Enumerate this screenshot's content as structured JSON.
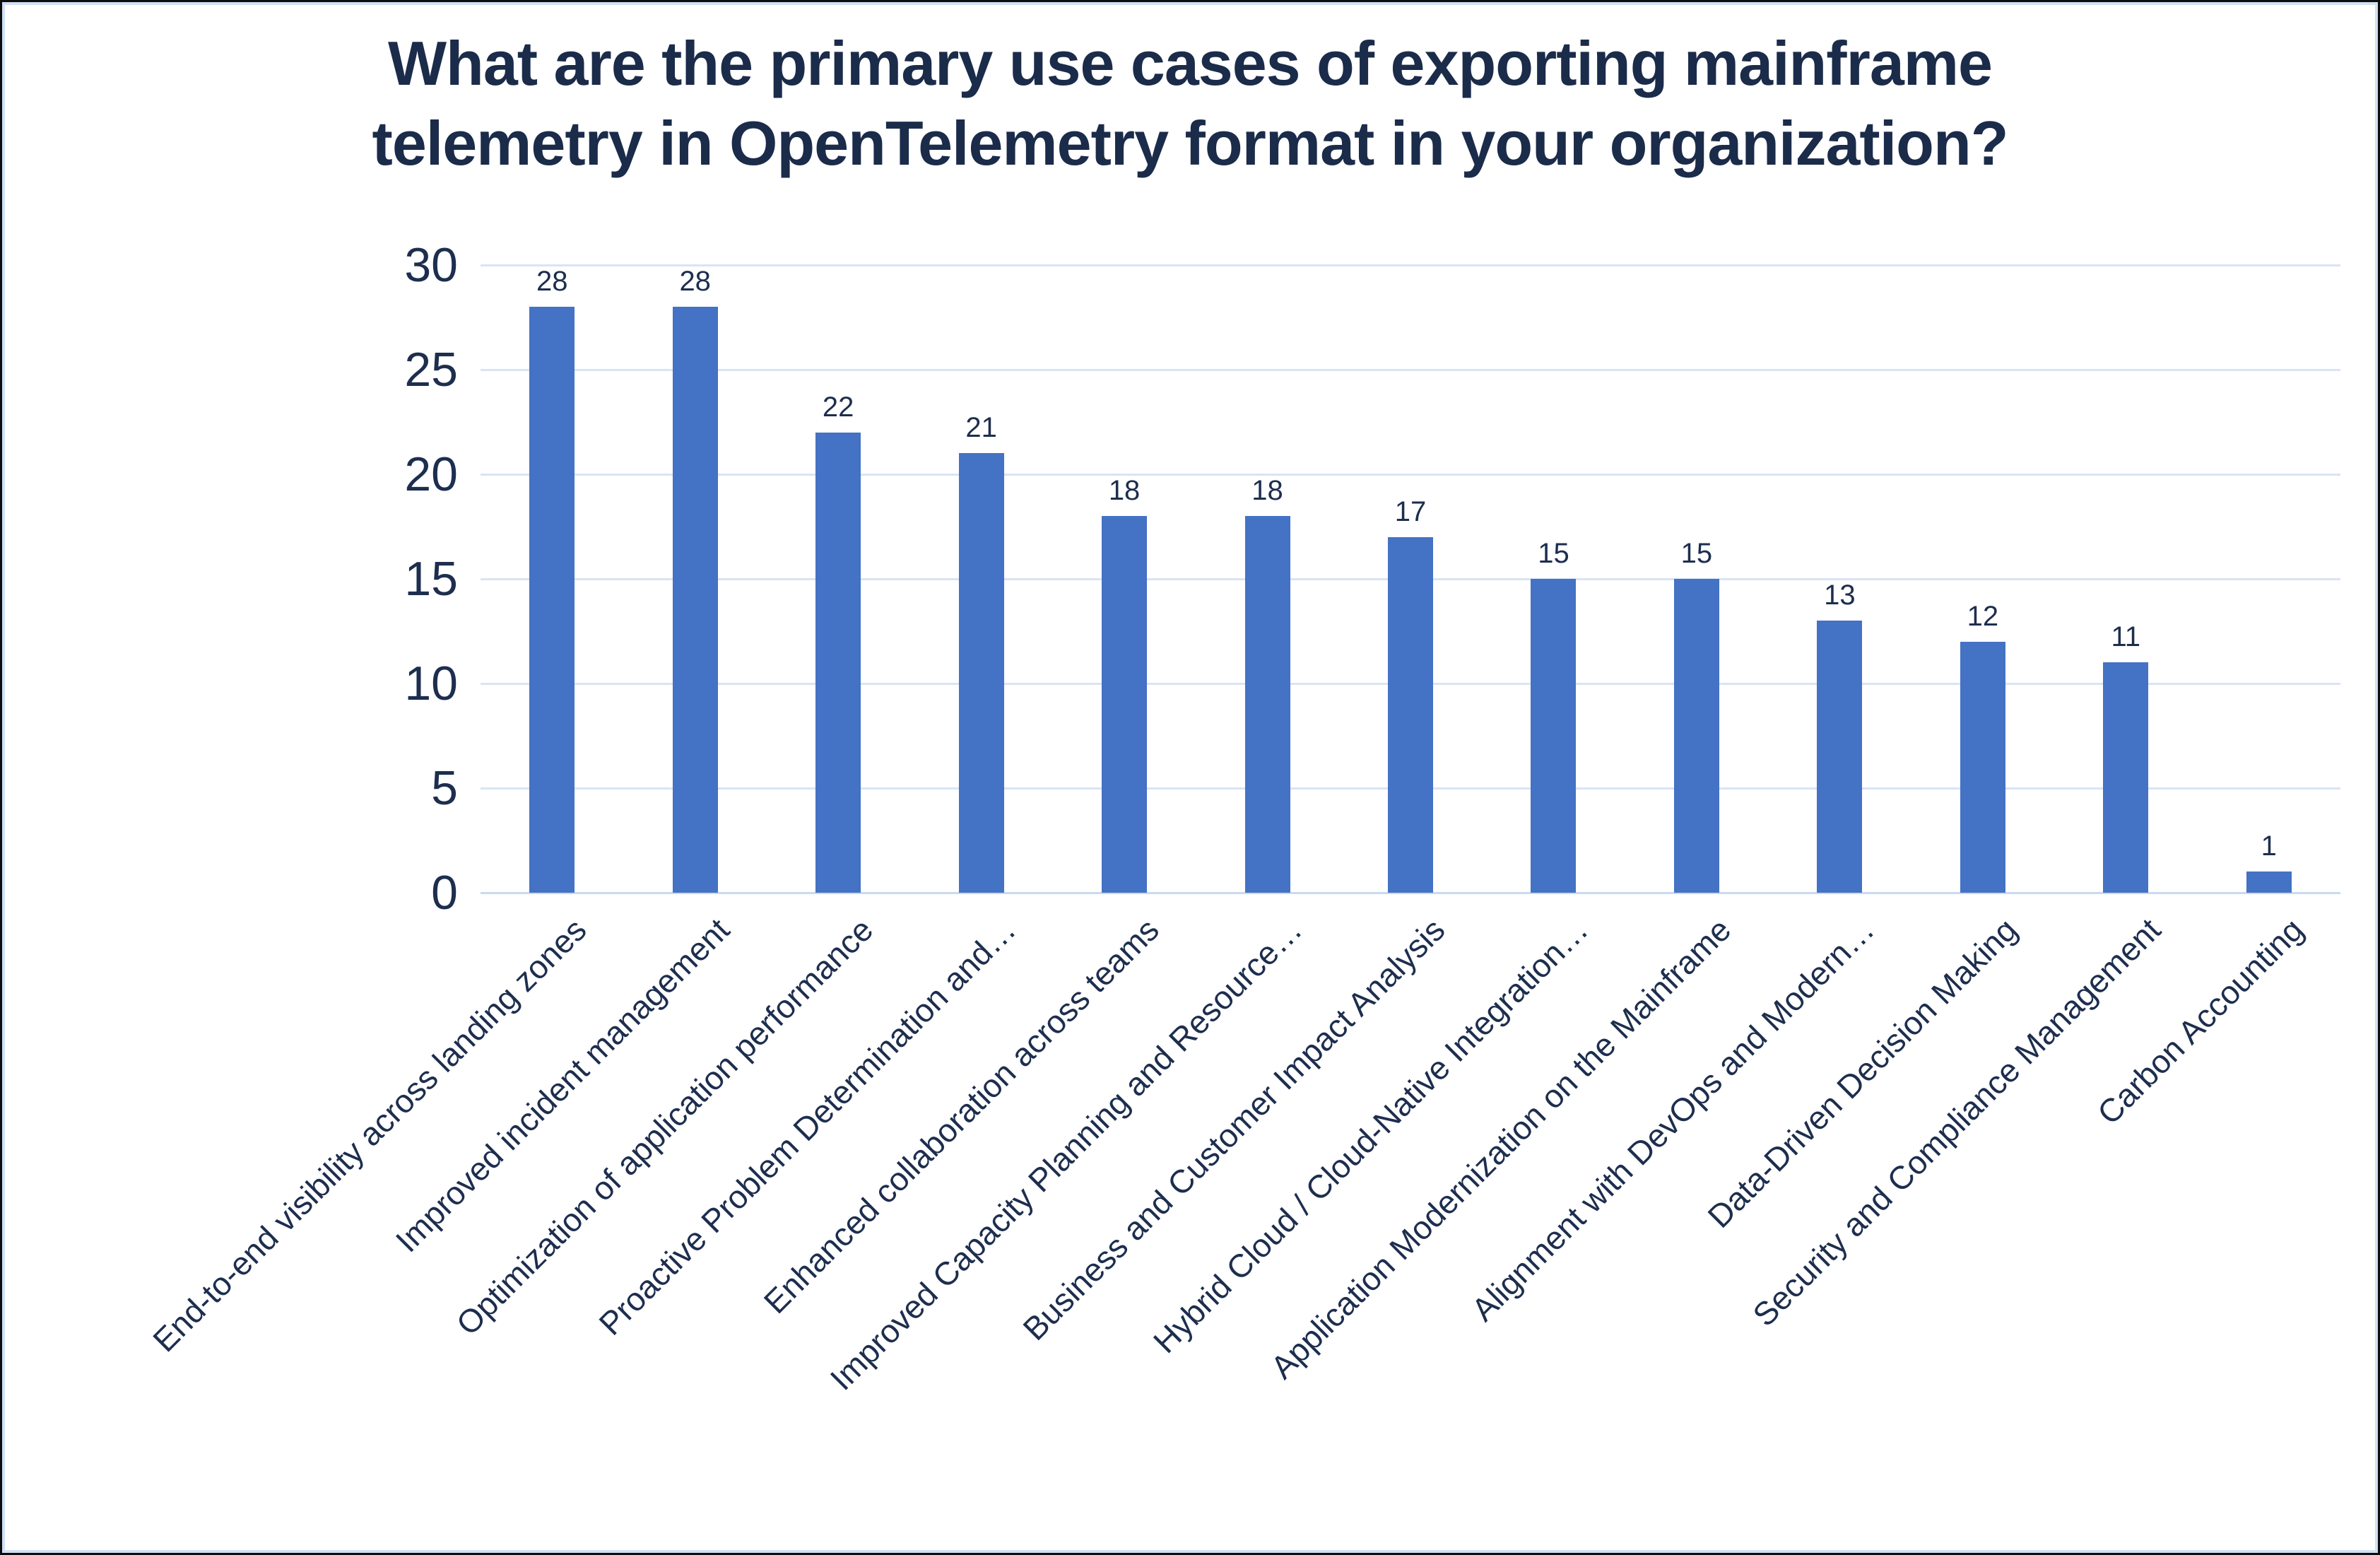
{
  "title_lines": [
    "What are the primary use cases of exporting mainframe",
    "telemetry in OpenTelemetry format in your organization?"
  ],
  "chart_data": {
    "type": "bar",
    "title": "What are the primary use cases of exporting mainframe telemetry in OpenTelemetry format in your organization?",
    "categories": [
      "End-to-end visibility across landing zones",
      "Improved incident management",
      "Optimization of application performance",
      "Proactive Problem Determination and…",
      "Enhanced collaboration across teams",
      "Improved Capacity Planning and Resource…",
      "Business and Customer Impact Analysis",
      "Hybrid Cloud / Cloud-Native Integration…",
      "Application Modernization on the Mainframe",
      "Alignment with DevOps and Modern…",
      "Data-Driven Decision Making",
      "Security and Compliance Management",
      "Carbon Accounting"
    ],
    "values": [
      28,
      28,
      22,
      21,
      18,
      18,
      17,
      15,
      15,
      13,
      12,
      11,
      1
    ],
    "yticks": [
      0,
      5,
      10,
      15,
      20,
      25,
      30
    ],
    "ylim": [
      0,
      30
    ],
    "xlabel": "",
    "ylabel": "",
    "grid": "horizontal",
    "legend": "none",
    "data_labels": true,
    "x_label_rotation_deg": 45,
    "bar_color": "#4472c4",
    "gridline_color": "#d9e4f5",
    "text_color": "#1d2e4e",
    "frame_outer_color": "#0d0d0d",
    "frame_inner_color": "#cfe0f4"
  }
}
